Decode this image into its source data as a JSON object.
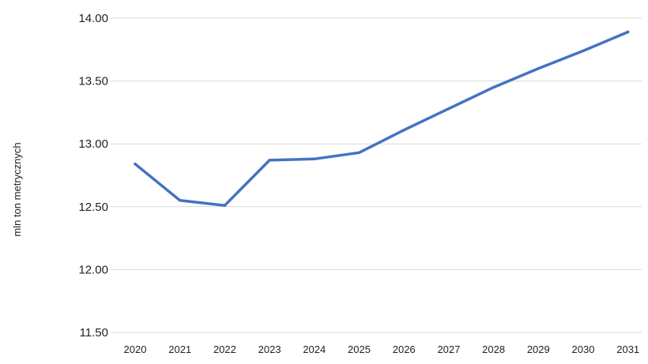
{
  "chart_data": {
    "type": "line",
    "title": "",
    "xlabel": "",
    "ylabel": "mln ton metrycznych",
    "ylim": [
      11.5,
      14.0
    ],
    "y_ticks": [
      "11.50",
      "12.00",
      "12.50",
      "13.00",
      "13.50",
      "14.00"
    ],
    "y_tick_values": [
      11.5,
      12.0,
      12.5,
      13.0,
      13.5,
      14.0
    ],
    "grid": true,
    "legend": "none",
    "categories": [
      "2020",
      "2021",
      "2022",
      "2023",
      "2024",
      "2025",
      "2026",
      "2027",
      "2028",
      "2029",
      "2030",
      "2031"
    ],
    "series": [
      {
        "color": "#4472c4",
        "values": [
          12.84,
          12.55,
          12.51,
          12.87,
          12.88,
          12.93,
          13.11,
          13.28,
          13.45,
          13.6,
          13.74,
          13.89
        ]
      }
    ]
  }
}
